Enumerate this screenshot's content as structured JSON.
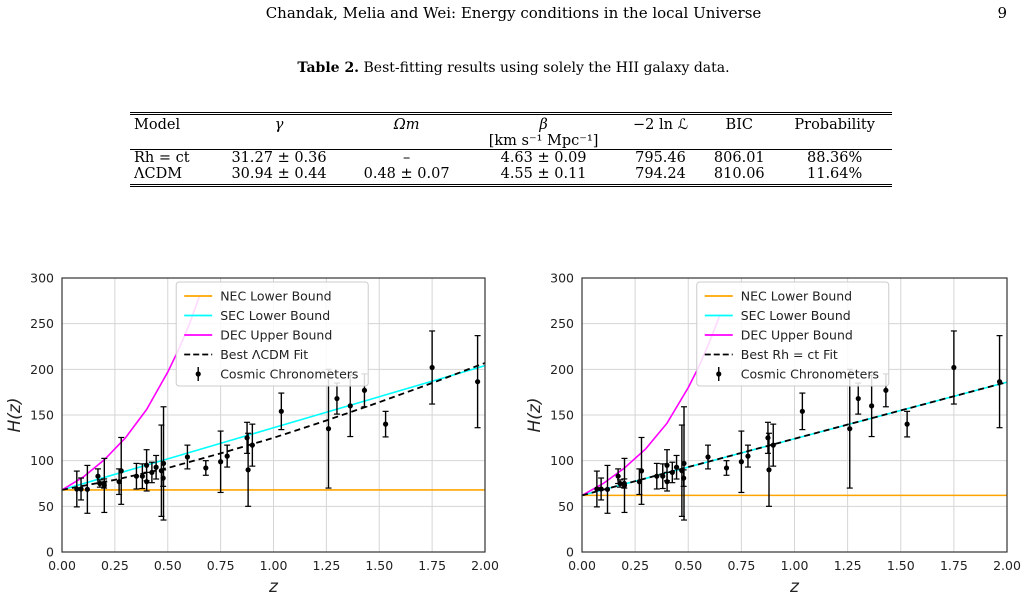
{
  "header": {
    "running_title": "Chandak, Melia and Wei: Energy conditions in the local Universe",
    "page_number": "9"
  },
  "table_caption": {
    "label": "Table 2.",
    "text": "Best-fitting results using solely the HII galaxy data."
  },
  "table": {
    "columns": [
      "Model",
      "γ",
      "Ωm",
      "β",
      "−2 ln ℒ",
      "BIC",
      "Probability"
    ],
    "beta_units": "[km s⁻¹ Mpc⁻¹]",
    "rows": [
      {
        "model": "Rh = ct",
        "gamma": "31.27 ± 0.36",
        "omega_m": "–",
        "beta": "4.63 ± 0.09",
        "neg2lnL": "795.46",
        "bic": "806.01",
        "probability": "88.36%"
      },
      {
        "model": "ΛCDM",
        "gamma": "30.94 ± 0.44",
        "omega_m": "0.48 ± 0.07",
        "beta": "4.55 ± 0.11",
        "neg2lnL": "794.24",
        "bic": "810.06",
        "probability": "11.64%"
      }
    ]
  },
  "chart_data": [
    {
      "type": "line",
      "xlabel": "z",
      "ylabel": "H(z)",
      "xlim": [
        0,
        2
      ],
      "ylim": [
        0,
        300
      ],
      "xticks": [
        "0.00",
        "0.25",
        "0.50",
        "0.75",
        "1.00",
        "1.25",
        "1.50",
        "1.75",
        "2.00"
      ],
      "yticks": [
        "0",
        "50",
        "100",
        "150",
        "200",
        "250",
        "300"
      ],
      "grid": true,
      "legend_position": "top-center",
      "legend": [
        "NEC Lower Bound",
        "SEC Lower Bound",
        "DEC Upper Bound",
        "Best ΛCDM Fit",
        "Cosmic Chronometers"
      ],
      "lines": {
        "nec": {
          "x": [
            0,
            2
          ],
          "y": [
            68,
            68
          ],
          "color": "#ffa500"
        },
        "sec": {
          "x": [
            0,
            0.5,
            1.0,
            1.5,
            2.0
          ],
          "y": [
            68,
            102,
            136,
            170,
            204
          ],
          "color": "#00ffff"
        },
        "dec": {
          "x": [
            0,
            0.1,
            0.2,
            0.3,
            0.4,
            0.5,
            0.55,
            0.6,
            0.65
          ],
          "y": [
            68,
            82,
            101,
            125,
            156,
            197,
            221,
            248,
            280
          ],
          "color": "#ff00ff"
        },
        "fit": {
          "x": [
            0,
            0.25,
            0.5,
            0.75,
            1.0,
            1.25,
            1.5,
            1.75,
            2.0
          ],
          "y": [
            68,
            79,
            92,
            108,
            125,
            144,
            164,
            185,
            207
          ],
          "color": "#000000"
        }
      }
    },
    {
      "type": "line",
      "xlabel": "z",
      "ylabel": "H(z)",
      "xlim": [
        0,
        2
      ],
      "ylim": [
        0,
        300
      ],
      "xticks": [
        "0.00",
        "0.25",
        "0.50",
        "0.75",
        "1.00",
        "1.25",
        "1.50",
        "1.75",
        "2.00"
      ],
      "yticks": [
        "0",
        "50",
        "100",
        "150",
        "200",
        "250",
        "300"
      ],
      "grid": true,
      "legend_position": "top-center",
      "legend": [
        "NEC Lower Bound",
        "SEC Lower Bound",
        "DEC Upper Bound",
        "Best Rh = ct Fit",
        "Cosmic Chronometers"
      ],
      "lines": {
        "nec": {
          "x": [
            0,
            2
          ],
          "y": [
            62,
            62
          ],
          "color": "#ffa500"
        },
        "sec": {
          "x": [
            0,
            2
          ],
          "y": [
            62,
            186
          ],
          "color": "#00ffff"
        },
        "dec": {
          "x": [
            0,
            0.1,
            0.2,
            0.3,
            0.4,
            0.5,
            0.55,
            0.6,
            0.65
          ],
          "y": [
            62,
            75,
            92,
            113,
            141,
            180,
            203,
            230,
            260
          ],
          "color": "#ff00ff"
        },
        "fit": {
          "x": [
            0,
            2
          ],
          "y": [
            62,
            186
          ],
          "color": "#000000"
        }
      }
    }
  ],
  "chronometers": [
    {
      "z": 0.07,
      "h": 69,
      "e": 19.6
    },
    {
      "z": 0.09,
      "h": 69,
      "e": 12
    },
    {
      "z": 0.12,
      "h": 68.6,
      "e": 26.2
    },
    {
      "z": 0.17,
      "h": 83,
      "e": 8
    },
    {
      "z": 0.179,
      "h": 75,
      "e": 4
    },
    {
      "z": 0.199,
      "h": 75,
      "e": 5
    },
    {
      "z": 0.2,
      "h": 72.9,
      "e": 29.6
    },
    {
      "z": 0.27,
      "h": 77,
      "e": 14
    },
    {
      "z": 0.28,
      "h": 88.8,
      "e": 36.6
    },
    {
      "z": 0.352,
      "h": 83,
      "e": 14
    },
    {
      "z": 0.38,
      "h": 83,
      "e": 13.5
    },
    {
      "z": 0.4,
      "h": 95,
      "e": 17
    },
    {
      "z": 0.4004,
      "h": 77,
      "e": 10.2
    },
    {
      "z": 0.425,
      "h": 87.1,
      "e": 11.2
    },
    {
      "z": 0.445,
      "h": 92.8,
      "e": 12.9
    },
    {
      "z": 0.47,
      "h": 89,
      "e": 50
    },
    {
      "z": 0.4783,
      "h": 80.9,
      "e": 9
    },
    {
      "z": 0.48,
      "h": 97,
      "e": 62
    },
    {
      "z": 0.593,
      "h": 104,
      "e": 13
    },
    {
      "z": 0.68,
      "h": 92,
      "e": 8
    },
    {
      "z": 0.75,
      "h": 98.8,
      "e": 33.6
    },
    {
      "z": 0.781,
      "h": 105,
      "e": 12
    },
    {
      "z": 0.875,
      "h": 125,
      "e": 17
    },
    {
      "z": 0.88,
      "h": 90,
      "e": 40
    },
    {
      "z": 0.9,
      "h": 117,
      "e": 23
    },
    {
      "z": 1.037,
      "h": 154,
      "e": 20
    },
    {
      "z": 1.26,
      "h": 135,
      "e": 65
    },
    {
      "z": 1.3,
      "h": 168,
      "e": 17
    },
    {
      "z": 1.363,
      "h": 160,
      "e": 33.6
    },
    {
      "z": 1.43,
      "h": 177,
      "e": 18
    },
    {
      "z": 1.53,
      "h": 140,
      "e": 14
    },
    {
      "z": 1.75,
      "h": 202,
      "e": 40
    },
    {
      "z": 1.965,
      "h": 186.5,
      "e": 50.4
    }
  ]
}
